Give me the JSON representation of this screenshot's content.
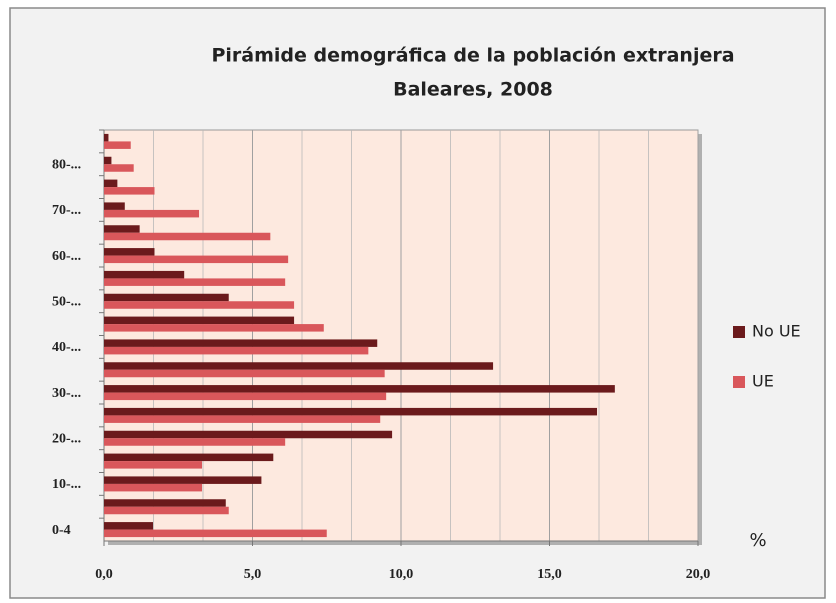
{
  "chart_data": {
    "type": "hbar",
    "title": "Pirámide demográfica de la población extranjera",
    "subtitle": "Baleares, 2008",
    "annotation": "%",
    "categories": [
      "0-4",
      null,
      "10-...",
      null,
      "20-...",
      null,
      "30-...",
      null,
      "40-...",
      null,
      "50-...",
      null,
      "60-...",
      null,
      "70-...",
      null,
      "80-...",
      null
    ],
    "series": [
      {
        "name": "No UE",
        "color": "#6b1a1c",
        "values": [
          1.65,
          4.1,
          5.3,
          5.7,
          9.7,
          16.6,
          17.2,
          13.1,
          9.2,
          6.4,
          4.2,
          2.7,
          1.7,
          1.2,
          0.7,
          0.45,
          0.25,
          0.15
        ]
      },
      {
        "name": "UE",
        "color": "#d9575b",
        "values": [
          7.5,
          4.2,
          3.3,
          3.3,
          6.1,
          9.3,
          9.5,
          9.45,
          8.9,
          7.4,
          6.4,
          6.1,
          6.2,
          5.6,
          3.2,
          1.7,
          1.0,
          0.9
        ]
      }
    ],
    "xlim": [
      0,
      20
    ],
    "xticks": [
      {
        "value": 0,
        "label": "0,0"
      },
      {
        "value": 5,
        "label": "5,0"
      },
      {
        "value": 10,
        "label": "10,0"
      },
      {
        "value": 15,
        "label": "15,0"
      },
      {
        "value": 20,
        "label": "20,0"
      }
    ],
    "grid": true,
    "legend": "right"
  }
}
